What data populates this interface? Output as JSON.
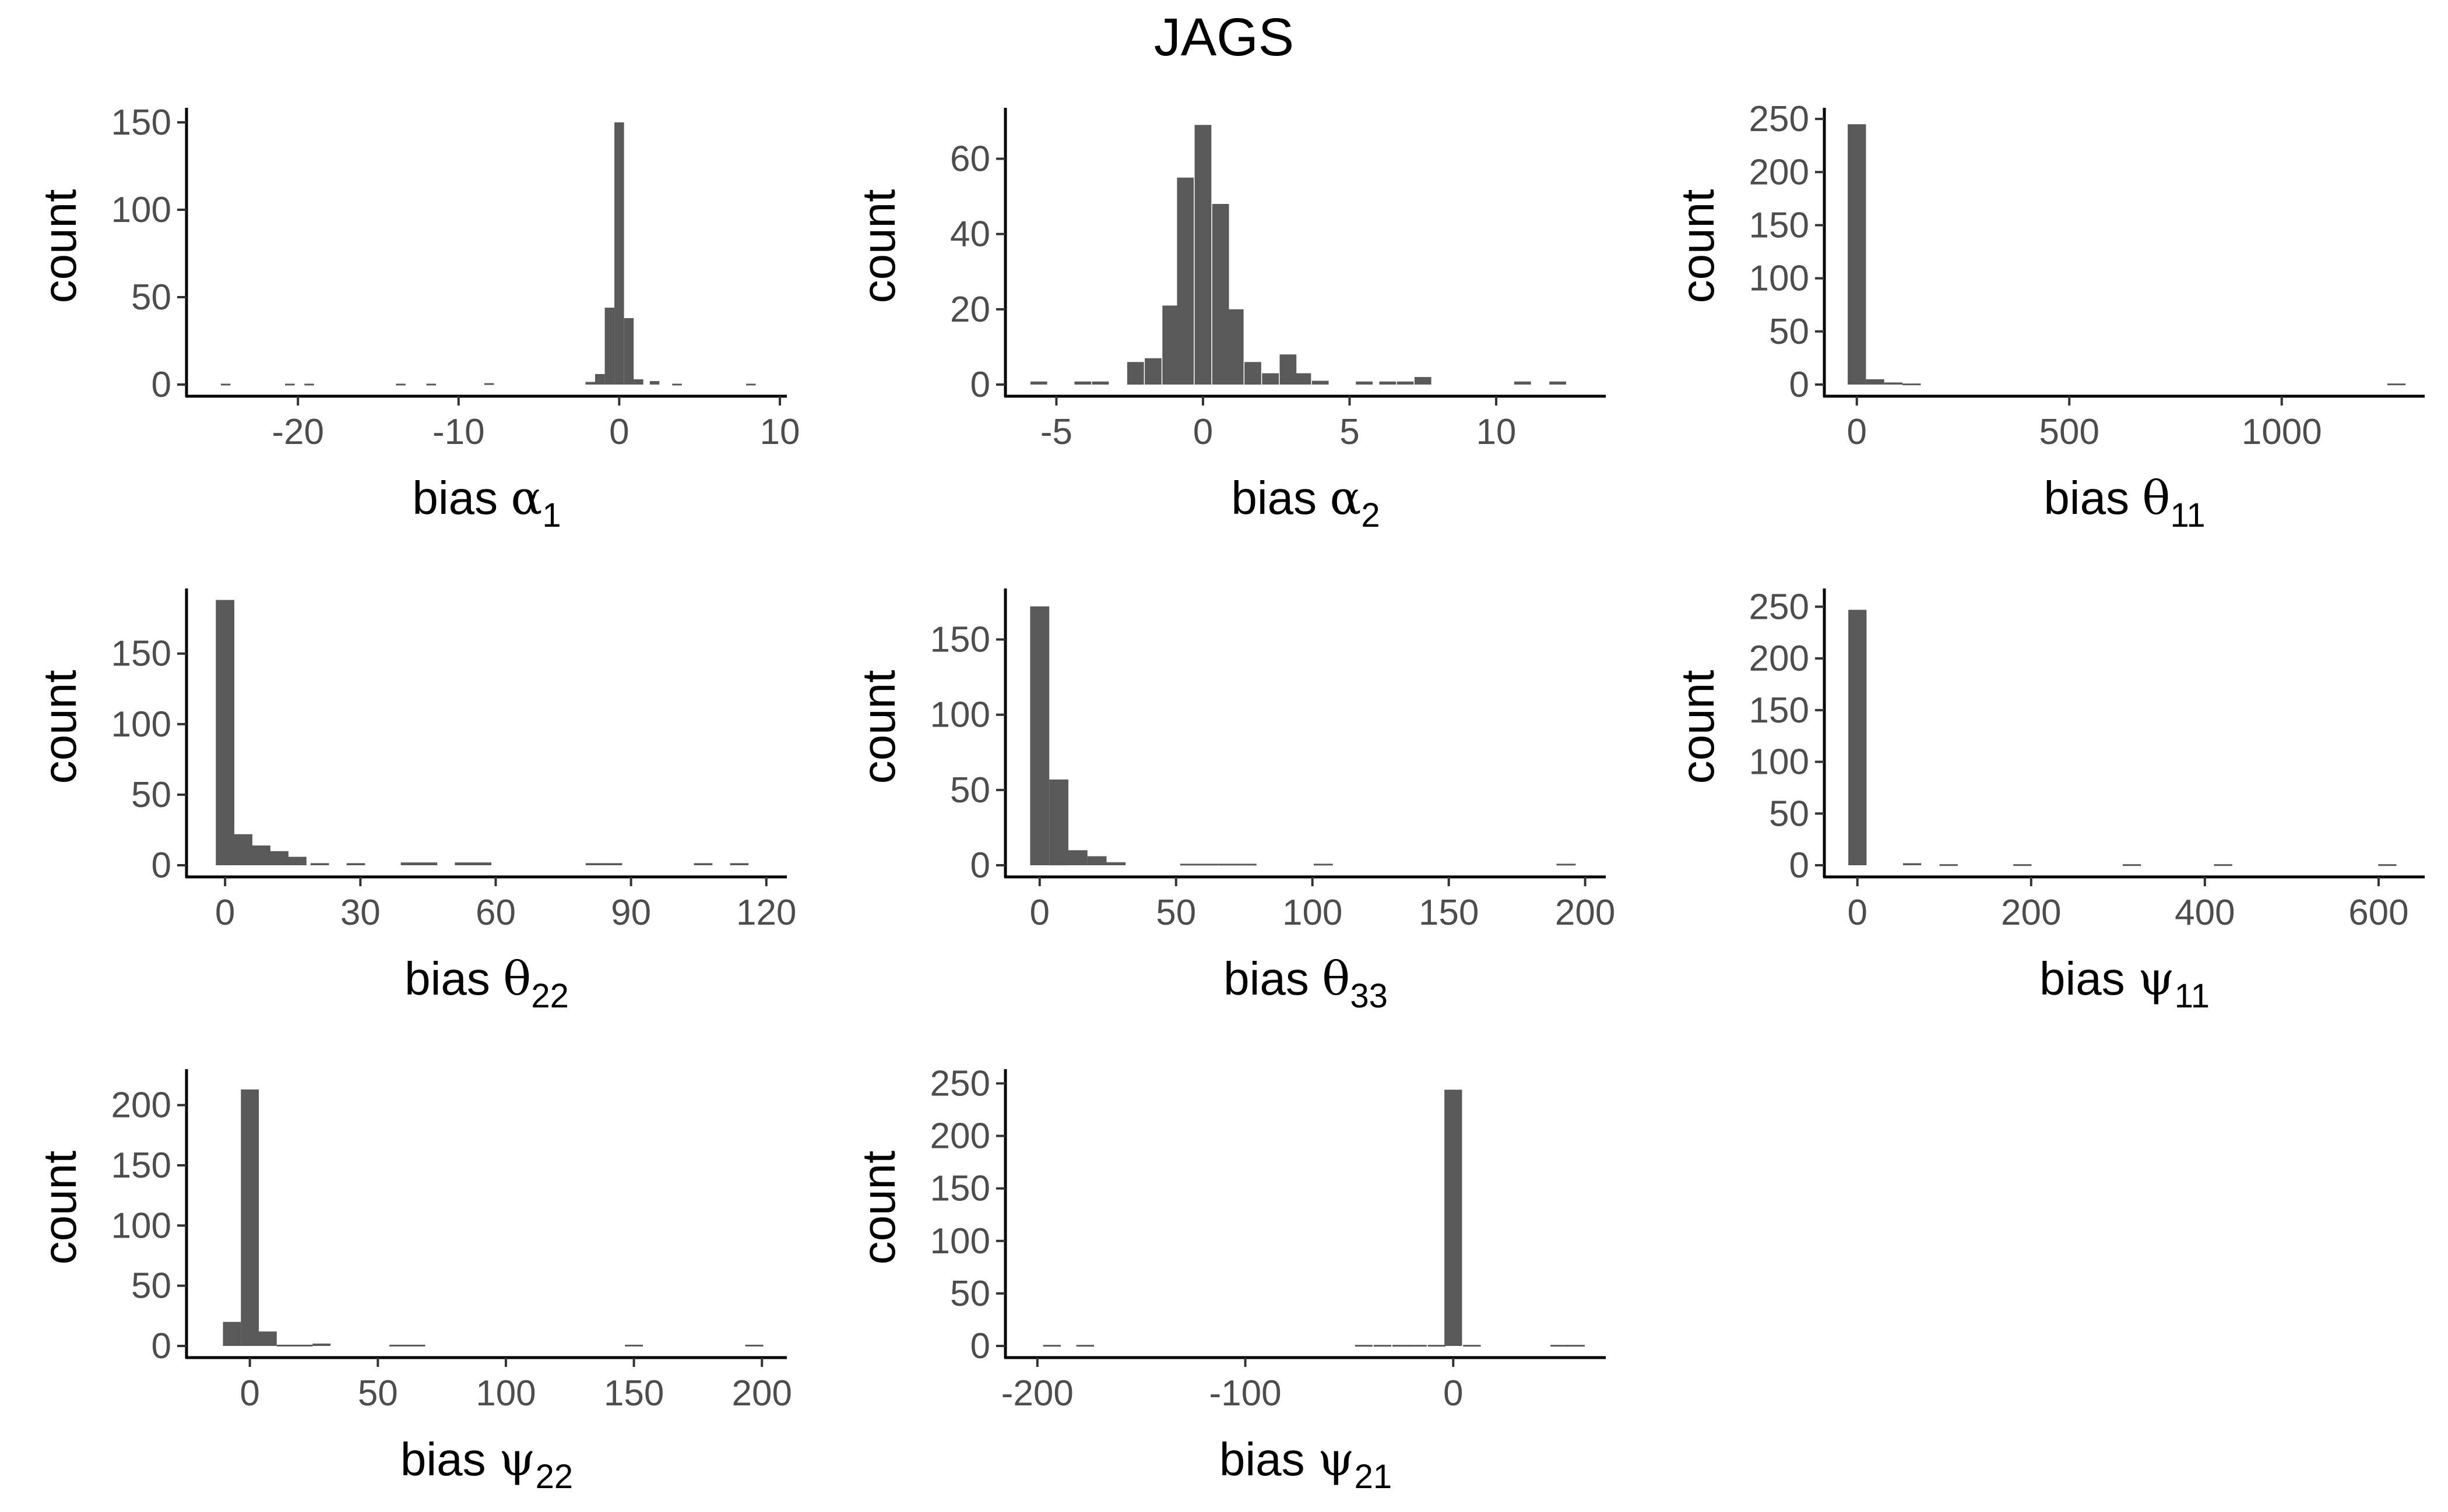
{
  "title": "JAGS",
  "colors": {
    "bar": "#595959",
    "axis": "#000000",
    "tick_text": "#4d4d4d"
  },
  "chart_data": [
    {
      "type": "bar",
      "title": "",
      "xlabel": "bias α1",
      "xlabel_prefix": "bias ",
      "xlabel_greek": "α",
      "xlabel_sub": "1",
      "ylabel": "count",
      "xlim": [
        -26.5,
        10
      ],
      "ylim": [
        0,
        155
      ],
      "xticks": [
        -20,
        -10,
        0,
        10
      ],
      "yticks": [
        0,
        50,
        100,
        150
      ],
      "x": [
        -24.5,
        -20.5,
        -19.3,
        -13.6,
        -11.7,
        -8.1,
        -1.8,
        -1.2,
        -0.6,
        0.0,
        0.6,
        1.2,
        2.2,
        3.6,
        8.2
      ],
      "values": [
        0.5,
        0.5,
        0.5,
        0.5,
        0.5,
        0.8,
        1.5,
        6,
        44,
        150,
        38,
        3,
        2,
        0.5,
        0.5
      ],
      "bin_width": 0.6
    },
    {
      "type": "bar",
      "title": "",
      "xlabel": "bias α2",
      "xlabel_prefix": "bias ",
      "xlabel_greek": "α",
      "xlabel_sub": "2",
      "ylabel": "count",
      "xlim": [
        -6.5,
        13.5
      ],
      "ylim": [
        0,
        72
      ],
      "xticks": [
        -5,
        0,
        5,
        10
      ],
      "yticks": [
        0,
        20,
        40,
        60
      ],
      "x": [
        -5.6,
        -4.1,
        -3.5,
        -2.3,
        -1.7,
        -1.1,
        -0.6,
        0.0,
        0.6,
        1.1,
        1.7,
        2.3,
        2.9,
        3.4,
        4.0,
        5.5,
        6.3,
        6.9,
        7.5,
        10.9,
        12.1
      ],
      "values": [
        0.8,
        0.8,
        0.8,
        6,
        7,
        21,
        55,
        69,
        48,
        20,
        6,
        3,
        8,
        3,
        1,
        0.8,
        0.8,
        0.8,
        2,
        0.8,
        0.8
      ],
      "bin_width": 0.57
    },
    {
      "type": "bar",
      "title": "",
      "xlabel": "bias θ11",
      "xlabel_prefix": "bias ",
      "xlabel_greek": "θ",
      "xlabel_sub": "11",
      "ylabel": "count",
      "xlim": [
        -60,
        1320
      ],
      "ylim": [
        0,
        255
      ],
      "xticks": [
        0,
        500,
        1000
      ],
      "yticks": [
        0,
        50,
        100,
        150,
        200,
        250
      ],
      "x": [
        0,
        43,
        86,
        129,
        1270
      ],
      "values": [
        245,
        5,
        2,
        1,
        1
      ],
      "bin_width": 43
    },
    {
      "type": "bar",
      "title": "",
      "xlabel": "bias θ22",
      "xlabel_prefix": "bias ",
      "xlabel_greek": "θ",
      "xlabel_sub": "22",
      "ylabel": "count",
      "xlim": [
        -7,
        123
      ],
      "ylim": [
        0,
        192
      ],
      "xticks": [
        0,
        30,
        60,
        90,
        120
      ],
      "yticks": [
        0,
        50,
        100,
        150
      ],
      "x": [
        0,
        4,
        8,
        12,
        16,
        21,
        29,
        41,
        45,
        53,
        57,
        82,
        86,
        106,
        114
      ],
      "values": [
        188,
        22,
        14,
        10,
        6,
        1.5,
        1.5,
        2,
        2,
        2,
        2,
        1.5,
        1.5,
        1.5,
        1.5
      ],
      "bin_width": 4.1
    },
    {
      "type": "bar",
      "title": "",
      "xlabel": "bias θ33",
      "xlabel_prefix": "bias ",
      "xlabel_greek": "θ",
      "xlabel_sub": "33",
      "ylabel": "count",
      "xlim": [
        -10,
        205
      ],
      "ylim": [
        0,
        180
      ],
      "xticks": [
        0,
        50,
        100,
        150,
        200
      ],
      "yticks": [
        0,
        50,
        100,
        150
      ],
      "x": [
        0,
        7,
        14,
        21,
        28,
        55,
        62,
        69,
        76,
        104,
        193
      ],
      "values": [
        172,
        57,
        10,
        6,
        2,
        1,
        1,
        1,
        1,
        1,
        1
      ],
      "bin_width": 7
    },
    {
      "type": "bar",
      "title": "",
      "xlabel": "bias ψ11",
      "xlabel_prefix": "bias ",
      "xlabel_greek": "ψ",
      "xlabel_sub": "11",
      "ylabel": "count",
      "xlim": [
        -30,
        645
      ],
      "ylim": [
        0,
        262
      ],
      "xticks": [
        0,
        200,
        400,
        600
      ],
      "yticks": [
        0,
        50,
        100,
        150,
        200,
        250
      ],
      "x": [
        0,
        63,
        105,
        190,
        316,
        421,
        610
      ],
      "values": [
        247,
        2,
        1,
        1,
        1,
        1,
        1
      ],
      "bin_width": 21
    },
    {
      "type": "bar",
      "title": "",
      "xlabel": "bias ψ22",
      "xlabel_prefix": "bias ",
      "xlabel_greek": "ψ",
      "xlabel_sub": "22",
      "ylabel": "count",
      "xlim": [
        -22,
        207
      ],
      "ylim": [
        0,
        225
      ],
      "xticks": [
        0,
        50,
        100,
        150,
        200
      ],
      "yticks": [
        0,
        50,
        100,
        150,
        200
      ],
      "x": [
        -7,
        0,
        7,
        14,
        21,
        28,
        58,
        65,
        150,
        197
      ],
      "values": [
        20,
        213,
        12,
        1,
        1,
        2,
        1,
        1,
        1,
        1
      ],
      "bin_width": 7
    },
    {
      "type": "bar",
      "title": "",
      "xlabel": "bias ψ21",
      "xlabel_prefix": "bias ",
      "xlabel_greek": "ψ",
      "xlabel_sub": "21",
      "ylabel": "count",
      "xlim": [
        -212,
        70
      ],
      "ylim": [
        0,
        258
      ],
      "xticks": [
        -200,
        -100,
        0
      ],
      "yticks": [
        0,
        50,
        100,
        150,
        200,
        250
      ],
      "x": [
        -193,
        -177,
        -43,
        -34,
        -25,
        -17,
        -8,
        0,
        9,
        51,
        59
      ],
      "values": [
        1,
        1,
        1,
        1,
        1,
        1,
        1,
        244,
        1,
        1,
        1
      ],
      "bin_width": 8.5
    }
  ]
}
